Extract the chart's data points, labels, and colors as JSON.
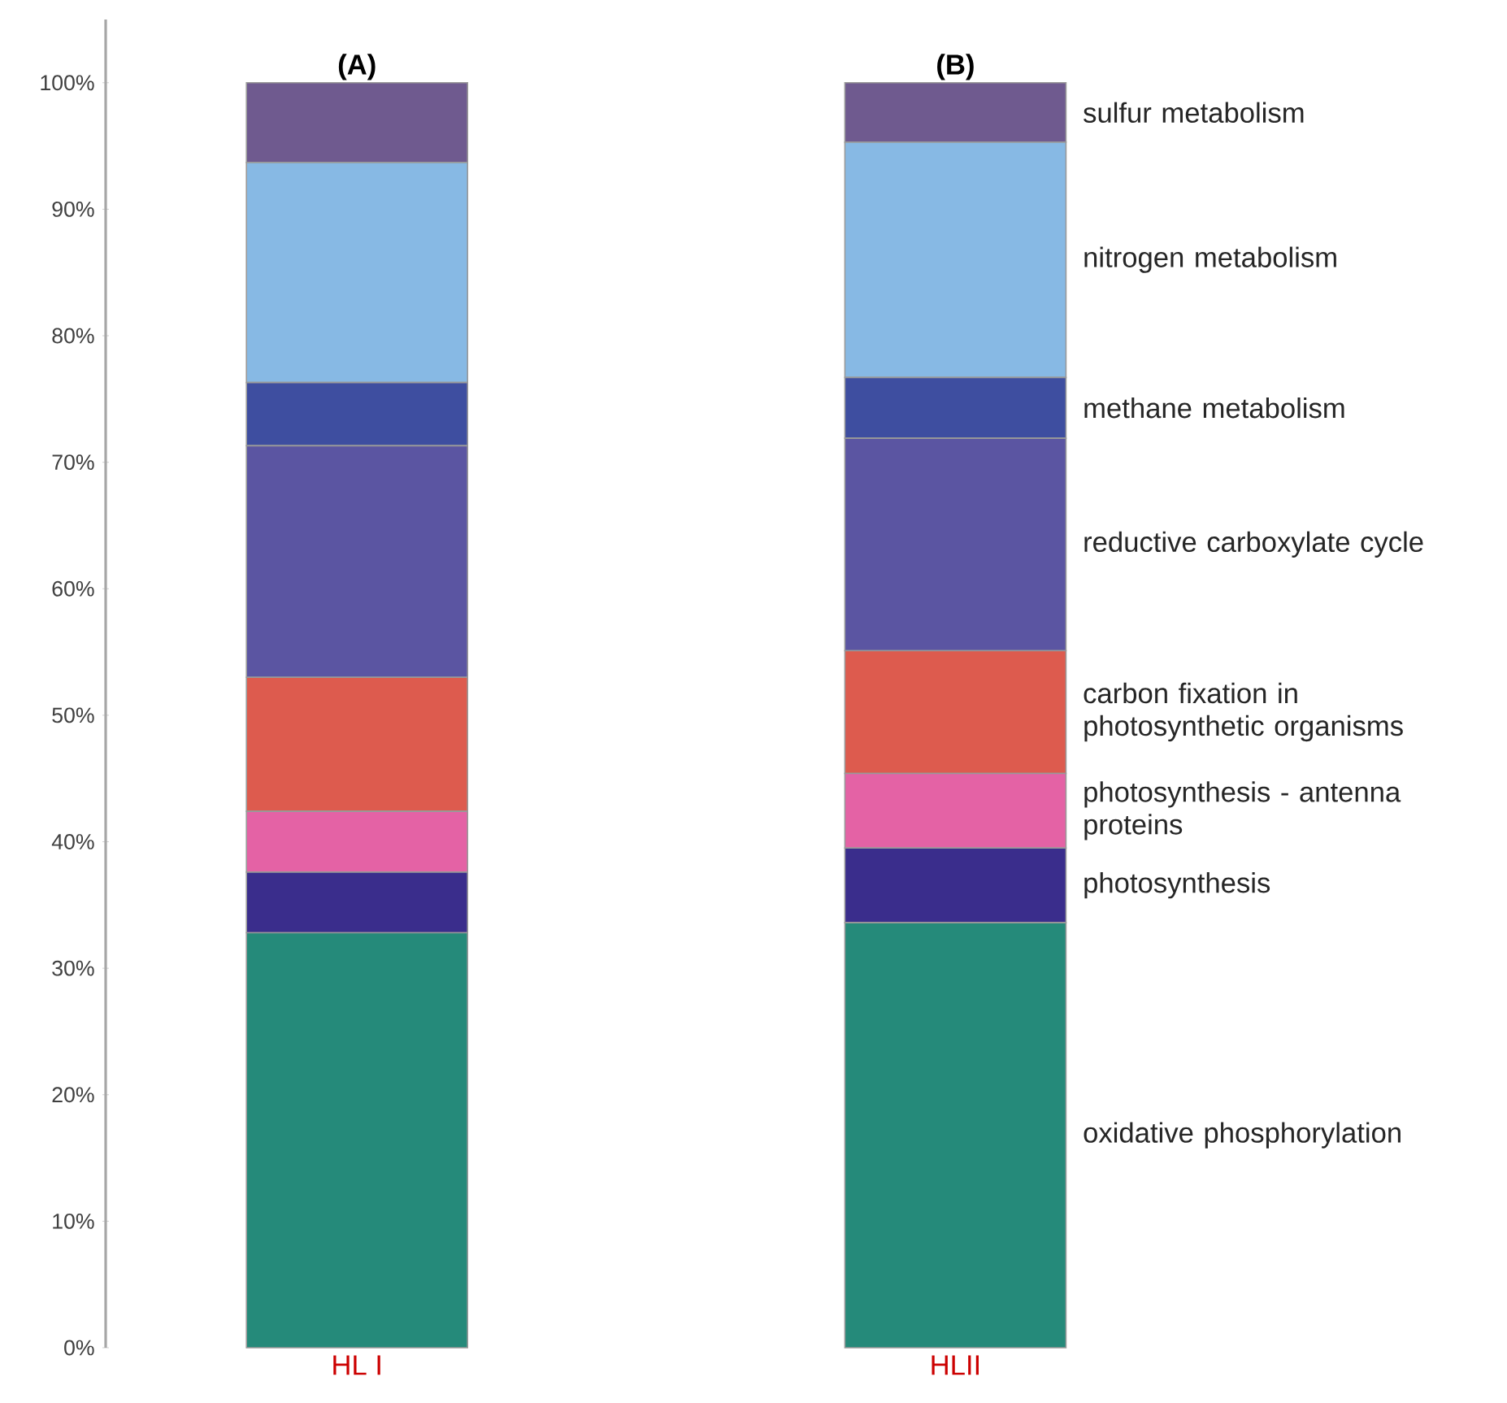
{
  "chart_data": {
    "type": "bar",
    "stacked": true,
    "categories": [
      "HL I",
      "HLII"
    ],
    "series": [
      {
        "name": "oxidative phosphorylation",
        "color": "#258a7a",
        "values": [
          32.8,
          33.6
        ]
      },
      {
        "name": "photosynthesis",
        "color": "#3a2d8c",
        "values": [
          4.8,
          5.9
        ]
      },
      {
        "name": "photosynthesis - antenna proteins",
        "color": "#e462a5",
        "values": [
          4.8,
          5.9
        ]
      },
      {
        "name": "carbon fixation in photosynthetic organisms",
        "color": "#dd5b4e",
        "values": [
          10.6,
          9.7
        ]
      },
      {
        "name": "reductive carboxylate cycle",
        "color": "#5b55a2",
        "values": [
          18.3,
          16.8
        ]
      },
      {
        "name": "methane metabolism",
        "color": "#3e4ea0",
        "values": [
          5.0,
          4.8
        ]
      },
      {
        "name": "nitrogen metabolism",
        "color": "#87b9e4",
        "values": [
          17.4,
          18.6
        ]
      },
      {
        "name": "sulfur metabolism",
        "color": "#6f5a8f",
        "values": [
          6.3,
          4.7
        ]
      }
    ],
    "ylim": [
      0,
      105
    ],
    "yticks": [
      {
        "value": 0,
        "label": "0%"
      },
      {
        "value": 10,
        "label": "10%"
      },
      {
        "value": 20,
        "label": "20%"
      },
      {
        "value": 30,
        "label": "30%"
      },
      {
        "value": 40,
        "label": "40%"
      },
      {
        "value": 50,
        "label": "50%"
      },
      {
        "value": 60,
        "label": "60%"
      },
      {
        "value": 70,
        "label": "70%"
      },
      {
        "value": 80,
        "label": "80%"
      },
      {
        "value": 90,
        "label": "90%"
      },
      {
        "value": 100,
        "label": "100%"
      }
    ],
    "annotations": [
      {
        "text": "(A)",
        "x": "HL I",
        "y": 100
      },
      {
        "text": "(B)",
        "x": "HLII",
        "y": 100
      }
    ]
  }
}
